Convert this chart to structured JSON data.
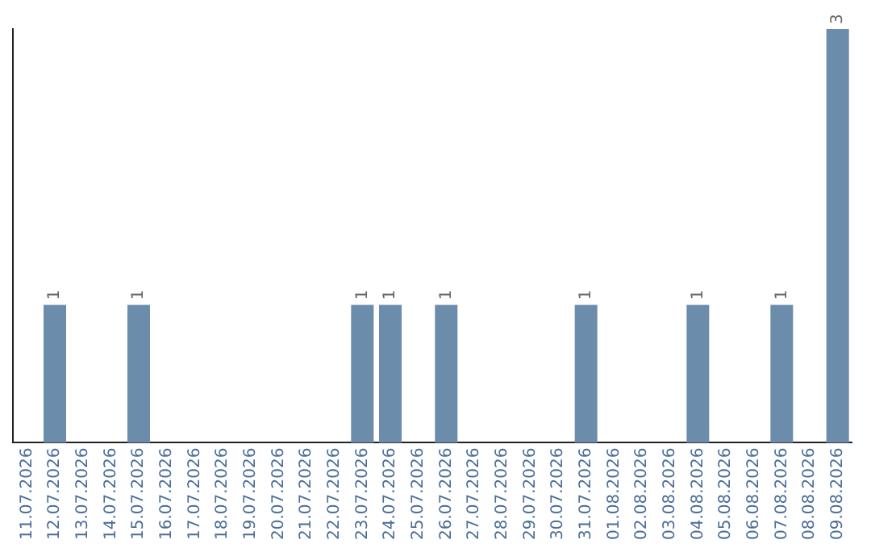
{
  "chart_data": {
    "type": "bar",
    "categories": [
      "11.07.2026",
      "12.07.2026",
      "13.07.2026",
      "14.07.2026",
      "15.07.2026",
      "16.07.2026",
      "17.07.2026",
      "18.07.2026",
      "19.07.2026",
      "20.07.2026",
      "21.07.2026",
      "22.07.2026",
      "23.07.2026",
      "24.07.2026",
      "25.07.2026",
      "26.07.2026",
      "27.07.2026",
      "28.07.2026",
      "29.07.2026",
      "30.07.2026",
      "31.07.2026",
      "01.08.2026",
      "02.08.2026",
      "03.08.2026",
      "04.08.2026",
      "05.08.2026",
      "06.08.2026",
      "07.08.2026",
      "08.08.2026",
      "09.08.2026"
    ],
    "values": [
      0,
      1,
      0,
      0,
      1,
      0,
      0,
      0,
      0,
      0,
      0,
      0,
      1,
      1,
      0,
      1,
      0,
      0,
      0,
      0,
      1,
      0,
      0,
      0,
      1,
      0,
      0,
      1,
      0,
      3
    ],
    "value_labels": [
      null,
      "1",
      null,
      null,
      "1",
      null,
      null,
      null,
      null,
      null,
      null,
      null,
      "1",
      "1",
      null,
      "1",
      null,
      null,
      null,
      null,
      "1",
      null,
      null,
      null,
      "1",
      null,
      null,
      "1",
      null,
      "3"
    ],
    "color": "#6b8cab",
    "grid": false,
    "legend": false,
    "tick_labels": "x"
  }
}
